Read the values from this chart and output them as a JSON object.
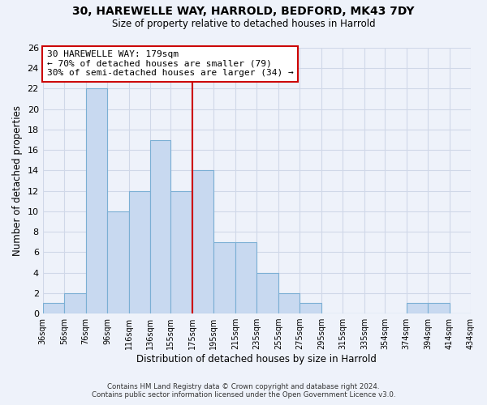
{
  "title1": "30, HAREWELLE WAY, HARROLD, BEDFORD, MK43 7DY",
  "title2": "Size of property relative to detached houses in Harrold",
  "xlabel": "Distribution of detached houses by size in Harrold",
  "ylabel": "Number of detached properties",
  "bar_color": "#c8d9f0",
  "bar_edgecolor": "#7bafd4",
  "vline_x": 175,
  "vline_color": "#cc0000",
  "bins": [
    36,
    56,
    76,
    96,
    116,
    136,
    155,
    175,
    195,
    215,
    235,
    255,
    275,
    295,
    315,
    335,
    354,
    374,
    394,
    414,
    434
  ],
  "bin_labels": [
    "36sqm",
    "56sqm",
    "76sqm",
    "96sqm",
    "116sqm",
    "136sqm",
    "155sqm",
    "175sqm",
    "195sqm",
    "215sqm",
    "235sqm",
    "255sqm",
    "275sqm",
    "295sqm",
    "315sqm",
    "335sqm",
    "354sqm",
    "374sqm",
    "394sqm",
    "414sqm",
    "434sqm"
  ],
  "counts": [
    1,
    2,
    22,
    10,
    12,
    17,
    12,
    14,
    7,
    7,
    4,
    2,
    1,
    0,
    0,
    0,
    0,
    1,
    1,
    0
  ],
  "ylim": [
    0,
    26
  ],
  "yticks": [
    0,
    2,
    4,
    6,
    8,
    10,
    12,
    14,
    16,
    18,
    20,
    22,
    24,
    26
  ],
  "annotation_title": "30 HAREWELLE WAY: 179sqm",
  "annotation_line1": "← 70% of detached houses are smaller (79)",
  "annotation_line2": "30% of semi-detached houses are larger (34) →",
  "annotation_box_color": "#ffffff",
  "annotation_box_edgecolor": "#cc0000",
  "footnote1": "Contains HM Land Registry data © Crown copyright and database right 2024.",
  "footnote2": "Contains public sector information licensed under the Open Government Licence v3.0.",
  "background_color": "#eef2fa"
}
